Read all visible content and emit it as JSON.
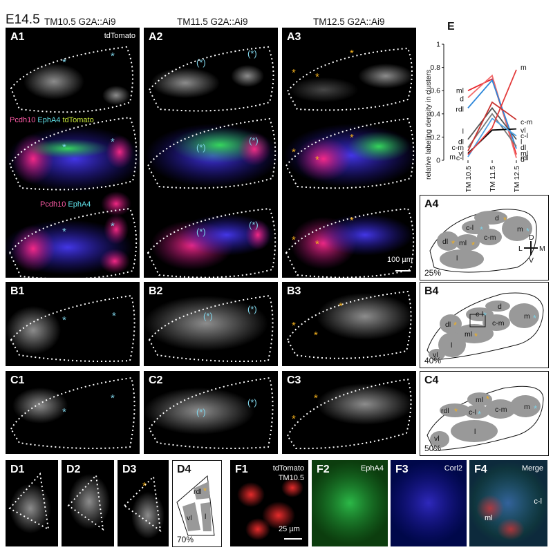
{
  "stage": "E14.5",
  "columns": [
    "TM10.5 G2A::Ai9",
    "TM11.5 G2A::Ai9",
    "TM12.5 G2A::Ai9"
  ],
  "panels": {
    "A1": "A1",
    "A2": "A2",
    "A3": "A3",
    "A4": "A4",
    "B1": "B1",
    "B2": "B2",
    "B3": "B3",
    "B4": "B4",
    "C1": "C1",
    "C2": "C2",
    "C3": "C3",
    "C4": "C4",
    "D1": "D1",
    "D2": "D2",
    "D3": "D3",
    "D4": "D4",
    "E": "E",
    "F1": "F1",
    "F2": "F2",
    "F3": "F3",
    "F4": "F4"
  },
  "tags": {
    "tdtomato": "tdTomato",
    "pcdh10": "Pcdh10",
    "epha4": "EphA4",
    "tdtomato_green": "tdTomato",
    "pcdh10_b": "Pcdh10",
    "epha4_b": "EphA4",
    "scale_100": "100 µm",
    "f1_line1": "tdTomato",
    "f1_line2": "TM10.5",
    "f2": "EphA4",
    "f3": "Corl2",
    "f4": "Merge",
    "f4_cl": "c-l",
    "f4_ml": "ml",
    "scale_25": "25 µm"
  },
  "percents": {
    "A4": "25%",
    "B4": "40%",
    "C4": "50%",
    "D4": "70%"
  },
  "orientation": {
    "D": "D",
    "V": "V",
    "L": "L",
    "M": "M"
  },
  "clusters": {
    "A4": {
      "d": "d",
      "cl": "c-l",
      "m": "m",
      "dl": "dl",
      "ml": "ml",
      "cm": "c-m",
      "l": "l"
    },
    "B4": {
      "cl": "c-l",
      "d": "d",
      "dl": "dl",
      "cm": "c-m",
      "m": "m",
      "ml": "ml",
      "l": "l",
      "vl": "vl"
    },
    "C4": {
      "ml": "ml",
      "rdl": "rdl",
      "cl": "c-l",
      "cm": "c-m",
      "m": "m",
      "l": "l",
      "vl": "vl"
    },
    "D4": {
      "rdl": "rdl",
      "vl": "vl",
      "l": "l"
    }
  },
  "chart_data": {
    "type": "line",
    "ylabel": "relative labeling density in clusters",
    "x": [
      "TM 10.5",
      "TM 11.5",
      "TM 12.5"
    ],
    "ylim": [
      0,
      1
    ],
    "yticks": [
      "0",
      "0.2",
      "0.4",
      "0.6",
      "0.8",
      "1"
    ],
    "left_labels": [
      "ml",
      "d",
      "rdl",
      "l",
      "dl",
      "c-m",
      "vl",
      "c-l",
      "m"
    ],
    "right_labels": [
      "m",
      "c-m",
      "vl",
      "c-l",
      "l",
      "dl",
      "ml",
      "rdl",
      "d"
    ],
    "series": [
      {
        "label": "ml",
        "color": "#e8242a",
        "values": [
          0.6,
          0.7,
          0.05
        ]
      },
      {
        "label": "d",
        "color": "#f26b6b",
        "values": [
          0.54,
          0.73,
          0.02
        ]
      },
      {
        "label": "rdl",
        "color": "#2b86d9",
        "values": [
          0.45,
          0.69,
          0.1
        ]
      },
      {
        "label": "l",
        "color": "#555555",
        "values": [
          0.18,
          0.45,
          0.18
        ]
      },
      {
        "label": "dl",
        "color": "#7a7a7a",
        "values": [
          0.11,
          0.4,
          0.12
        ]
      },
      {
        "label": "c-m",
        "color": "#c9322f",
        "values": [
          0.08,
          0.5,
          0.35
        ]
      },
      {
        "label": "vl",
        "color": "#000000",
        "values": [
          0.06,
          0.26,
          0.27
        ]
      },
      {
        "label": "c-l",
        "color": "#4fa3e6",
        "values": [
          0.03,
          0.36,
          0.21
        ]
      },
      {
        "label": "m",
        "color": "#e33b3b",
        "values": [
          0.05,
          0.28,
          0.78
        ]
      }
    ]
  }
}
